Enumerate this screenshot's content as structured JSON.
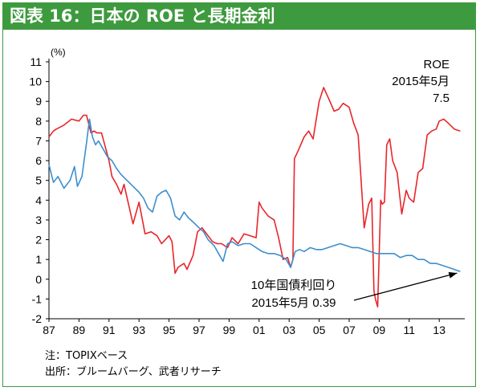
{
  "header": {
    "title": "図表 16：日本の ROE と長期金利"
  },
  "notes": {
    "note": "注：TOPIXベース",
    "source": "出所：ブルームバーグ、武者リサーチ"
  },
  "colors": {
    "header_bg": "#3e9a3e",
    "roe_line": "#e8262a",
    "yield_line": "#3b8fd0",
    "arrow": "#000000",
    "axis": "#000000"
  },
  "chart_data": {
    "type": "line",
    "title": "",
    "ylabel": "(%)",
    "ylim": [
      -2,
      11
    ],
    "yticks": [
      "-2",
      "-1",
      "0",
      "1",
      "2",
      "3",
      "4",
      "5",
      "6",
      "7",
      "8",
      "9",
      "10",
      "11"
    ],
    "xlim": [
      1987,
      2014.7
    ],
    "xticks": [
      "87",
      "89",
      "91",
      "93",
      "95",
      "97",
      "99",
      "01",
      "03",
      "05",
      "07",
      "09",
      "11",
      "13"
    ],
    "grid": false,
    "annotations": {
      "roe": [
        "ROE",
        "2015年5月",
        "7.5"
      ],
      "yield": [
        "10年国債利回り",
        "2015年5月 0.39"
      ]
    },
    "series": [
      {
        "key": "roe",
        "color": "#e8262a",
        "x": [
          1987.0,
          1987.3,
          1987.5,
          1988.0,
          1988.5,
          1989.0,
          1989.3,
          1989.5,
          1989.8,
          1990.0,
          1990.2,
          1990.5,
          1991.0,
          1991.2,
          1991.5,
          1991.8,
          1992.0,
          1992.3,
          1992.6,
          1993.0,
          1993.4,
          1993.8,
          1994.2,
          1994.5,
          1995.0,
          1995.2,
          1995.4,
          1995.6,
          1996.0,
          1996.2,
          1996.6,
          1996.9,
          1997.2,
          1997.5,
          1997.9,
          1998.2,
          1998.5,
          1998.9,
          1999.2,
          1999.6,
          2000.0,
          2000.4,
          2000.8,
          2001.0,
          2001.2,
          2001.6,
          2002.0,
          2002.3,
          2002.6,
          2002.9,
          2003.1,
          2003.25,
          2003.35,
          2003.6,
          2004.0,
          2004.3,
          2004.6,
          2005.0,
          2005.3,
          2005.6,
          2006.0,
          2006.3,
          2006.6,
          2007.0,
          2007.3,
          2007.6,
          2008.0,
          2008.3,
          2008.5,
          2008.65,
          2008.75,
          2008.9,
          2009.1,
          2009.2,
          2009.35,
          2009.5,
          2009.7,
          2009.9,
          2010.2,
          2010.5,
          2010.8,
          2011.0,
          2011.3,
          2011.6,
          2011.9,
          2012.2,
          2012.5,
          2012.8,
          2013.0,
          2013.3,
          2013.6,
          2014.0,
          2014.4
        ],
        "values": [
          7.2,
          7.5,
          7.6,
          7.8,
          8.1,
          8.0,
          8.3,
          8.3,
          7.4,
          7.5,
          7.4,
          7.4,
          6.0,
          5.2,
          4.8,
          4.3,
          4.8,
          3.8,
          2.8,
          3.9,
          2.3,
          2.4,
          2.2,
          1.8,
          2.2,
          1.9,
          0.3,
          0.6,
          0.8,
          0.5,
          1.2,
          2.4,
          2.6,
          2.3,
          1.9,
          1.8,
          1.8,
          1.6,
          2.1,
          1.8,
          2.3,
          2.2,
          2.1,
          3.9,
          3.6,
          3.2,
          3.0,
          2.1,
          1.0,
          1.1,
          0.6,
          1.0,
          6.1,
          6.5,
          7.2,
          7.5,
          7.1,
          9.0,
          9.7,
          9.2,
          8.5,
          8.6,
          8.9,
          8.7,
          7.9,
          7.3,
          2.6,
          3.8,
          4.1,
          -0.6,
          -1.0,
          -1.4,
          4.0,
          3.8,
          3.9,
          6.8,
          7.1,
          6.0,
          5.4,
          3.3,
          4.5,
          4.1,
          3.9,
          5.4,
          5.6,
          7.3,
          7.5,
          7.6,
          8.0,
          8.1,
          7.9,
          7.6,
          7.5
        ]
      },
      {
        "key": "yield",
        "color": "#3b8fd0",
        "x": [
          1987.0,
          1987.3,
          1987.6,
          1988.0,
          1988.4,
          1988.7,
          1988.9,
          1989.2,
          1989.5,
          1989.7,
          1989.9,
          1990.1,
          1990.3,
          1990.6,
          1990.9,
          1991.2,
          1991.5,
          1991.8,
          1992.2,
          1992.6,
          1993.0,
          1993.3,
          1993.6,
          1993.9,
          1994.2,
          1994.5,
          1994.8,
          1995.1,
          1995.4,
          1995.7,
          1996.0,
          1996.3,
          1996.6,
          1997.0,
          1997.3,
          1997.6,
          1998.0,
          1998.3,
          1998.6,
          1998.9,
          1999.2,
          1999.6,
          2000.0,
          2000.4,
          2000.8,
          2001.2,
          2001.6,
          2002.0,
          2002.4,
          2002.8,
          2003.1,
          2003.4,
          2003.7,
          2004.0,
          2004.4,
          2004.8,
          2005.2,
          2005.6,
          2006.0,
          2006.4,
          2006.8,
          2007.2,
          2007.6,
          2008.0,
          2008.4,
          2008.8,
          2009.2,
          2009.6,
          2010.0,
          2010.4,
          2010.8,
          2011.2,
          2011.6,
          2012.0,
          2012.4,
          2012.8,
          2013.2,
          2013.6,
          2014.0,
          2014.4
        ],
        "values": [
          5.8,
          4.9,
          5.2,
          4.6,
          5.0,
          5.7,
          4.7,
          5.2,
          6.9,
          8.1,
          7.2,
          6.8,
          7.0,
          6.6,
          6.2,
          6.0,
          5.6,
          5.3,
          5.0,
          4.7,
          4.4,
          4.1,
          3.6,
          3.4,
          4.2,
          4.4,
          4.5,
          4.1,
          3.2,
          3.0,
          3.4,
          3.1,
          2.9,
          2.6,
          2.4,
          2.0,
          1.7,
          1.3,
          0.9,
          1.8,
          1.9,
          1.7,
          1.8,
          1.8,
          1.6,
          1.4,
          1.3,
          1.3,
          1.2,
          1.0,
          0.6,
          1.4,
          1.5,
          1.4,
          1.6,
          1.5,
          1.5,
          1.6,
          1.7,
          1.8,
          1.7,
          1.6,
          1.6,
          1.5,
          1.4,
          1.3,
          1.3,
          1.3,
          1.3,
          1.1,
          1.2,
          1.2,
          1.0,
          1.0,
          0.8,
          0.8,
          0.7,
          0.6,
          0.5,
          0.39
        ]
      }
    ]
  }
}
